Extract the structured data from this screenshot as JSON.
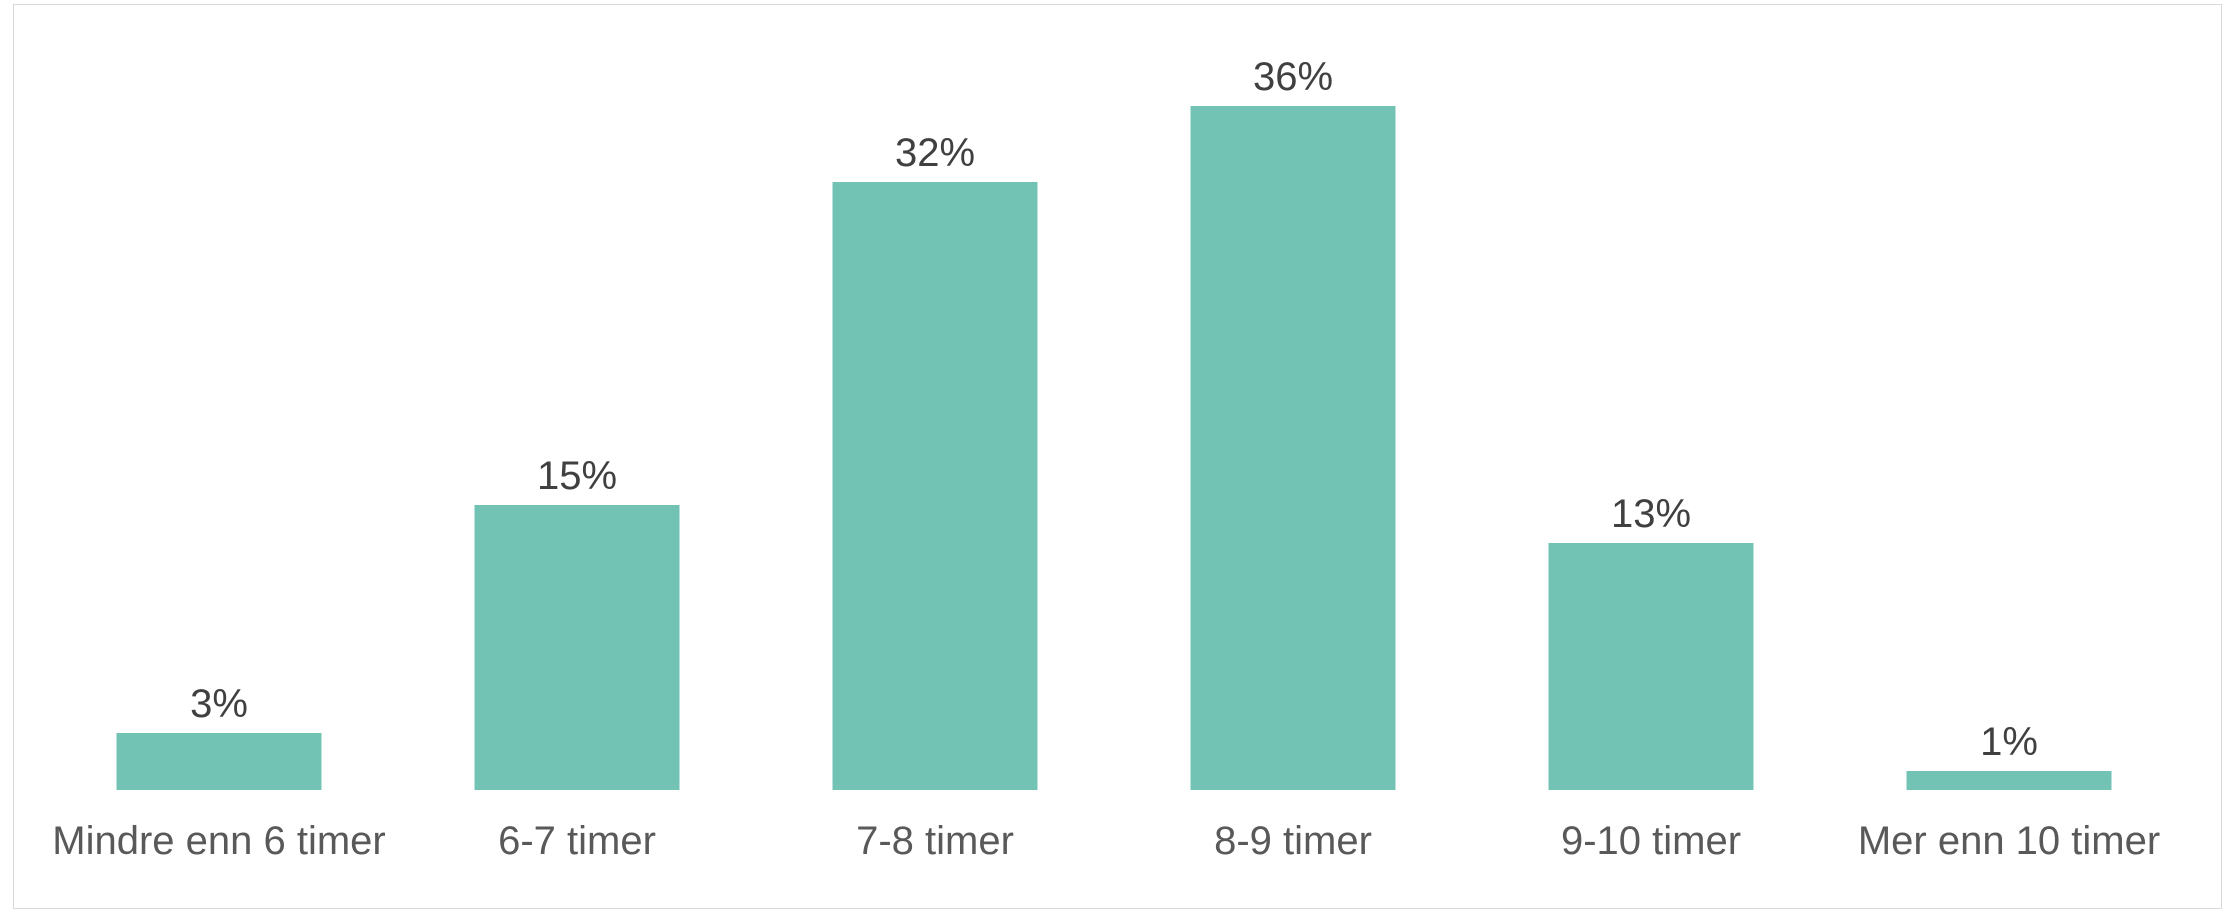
{
  "chart_data": {
    "type": "bar",
    "categories": [
      "Mindre enn 6 timer",
      "6-7 timer",
      "7-8 timer",
      "8-9 timer",
      "9-10 timer",
      "Mer enn 10 timer"
    ],
    "values": [
      3,
      15,
      32,
      36,
      13,
      1
    ],
    "value_labels": [
      "3%",
      "15%",
      "32%",
      "36%",
      "13%",
      "1%"
    ],
    "unit": "%",
    "title": "",
    "xlabel": "",
    "ylabel": "",
    "ylim": [
      0,
      36
    ],
    "grid": false,
    "legend": "none",
    "bar_color": "#72C3B3",
    "label_color": "#404040",
    "category_color": "#595959"
  }
}
